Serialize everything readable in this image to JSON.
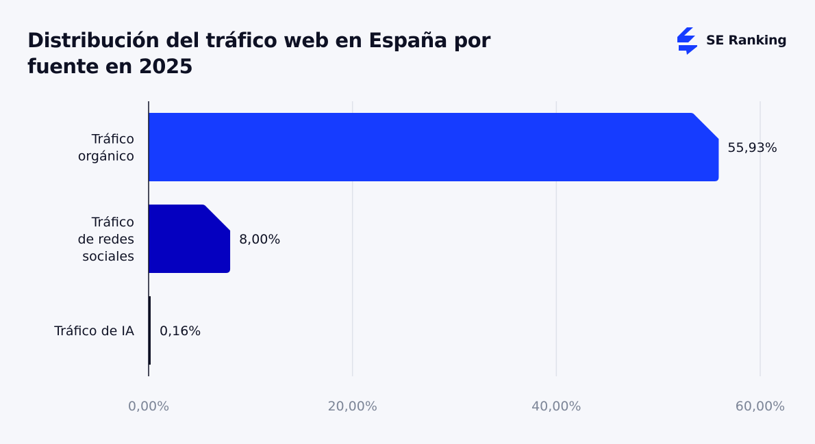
{
  "title": "Distribución del tráfico web en España por fuente en 2025",
  "brand": "SE Ranking",
  "chart_data": {
    "type": "bar",
    "orientation": "horizontal",
    "categories": [
      [
        "Tráfico",
        "orgánico"
      ],
      [
        "Tráfico",
        "de redes",
        "sociales"
      ],
      [
        "Tráfico de IA"
      ]
    ],
    "values": [
      55.93,
      8.0,
      0.16
    ],
    "value_labels": [
      "55,93%",
      "8,00%",
      "0,16%"
    ],
    "colors": [
      "#163cff",
      "#0500c0",
      "#0e1124"
    ],
    "xlim": [
      0,
      60
    ],
    "xticks": [
      0,
      20,
      40,
      60
    ],
    "xtick_labels": [
      "0,00%",
      "20,00%",
      "40,00%",
      "60,00%"
    ],
    "grid": true,
    "xlabel": "",
    "ylabel": ""
  }
}
